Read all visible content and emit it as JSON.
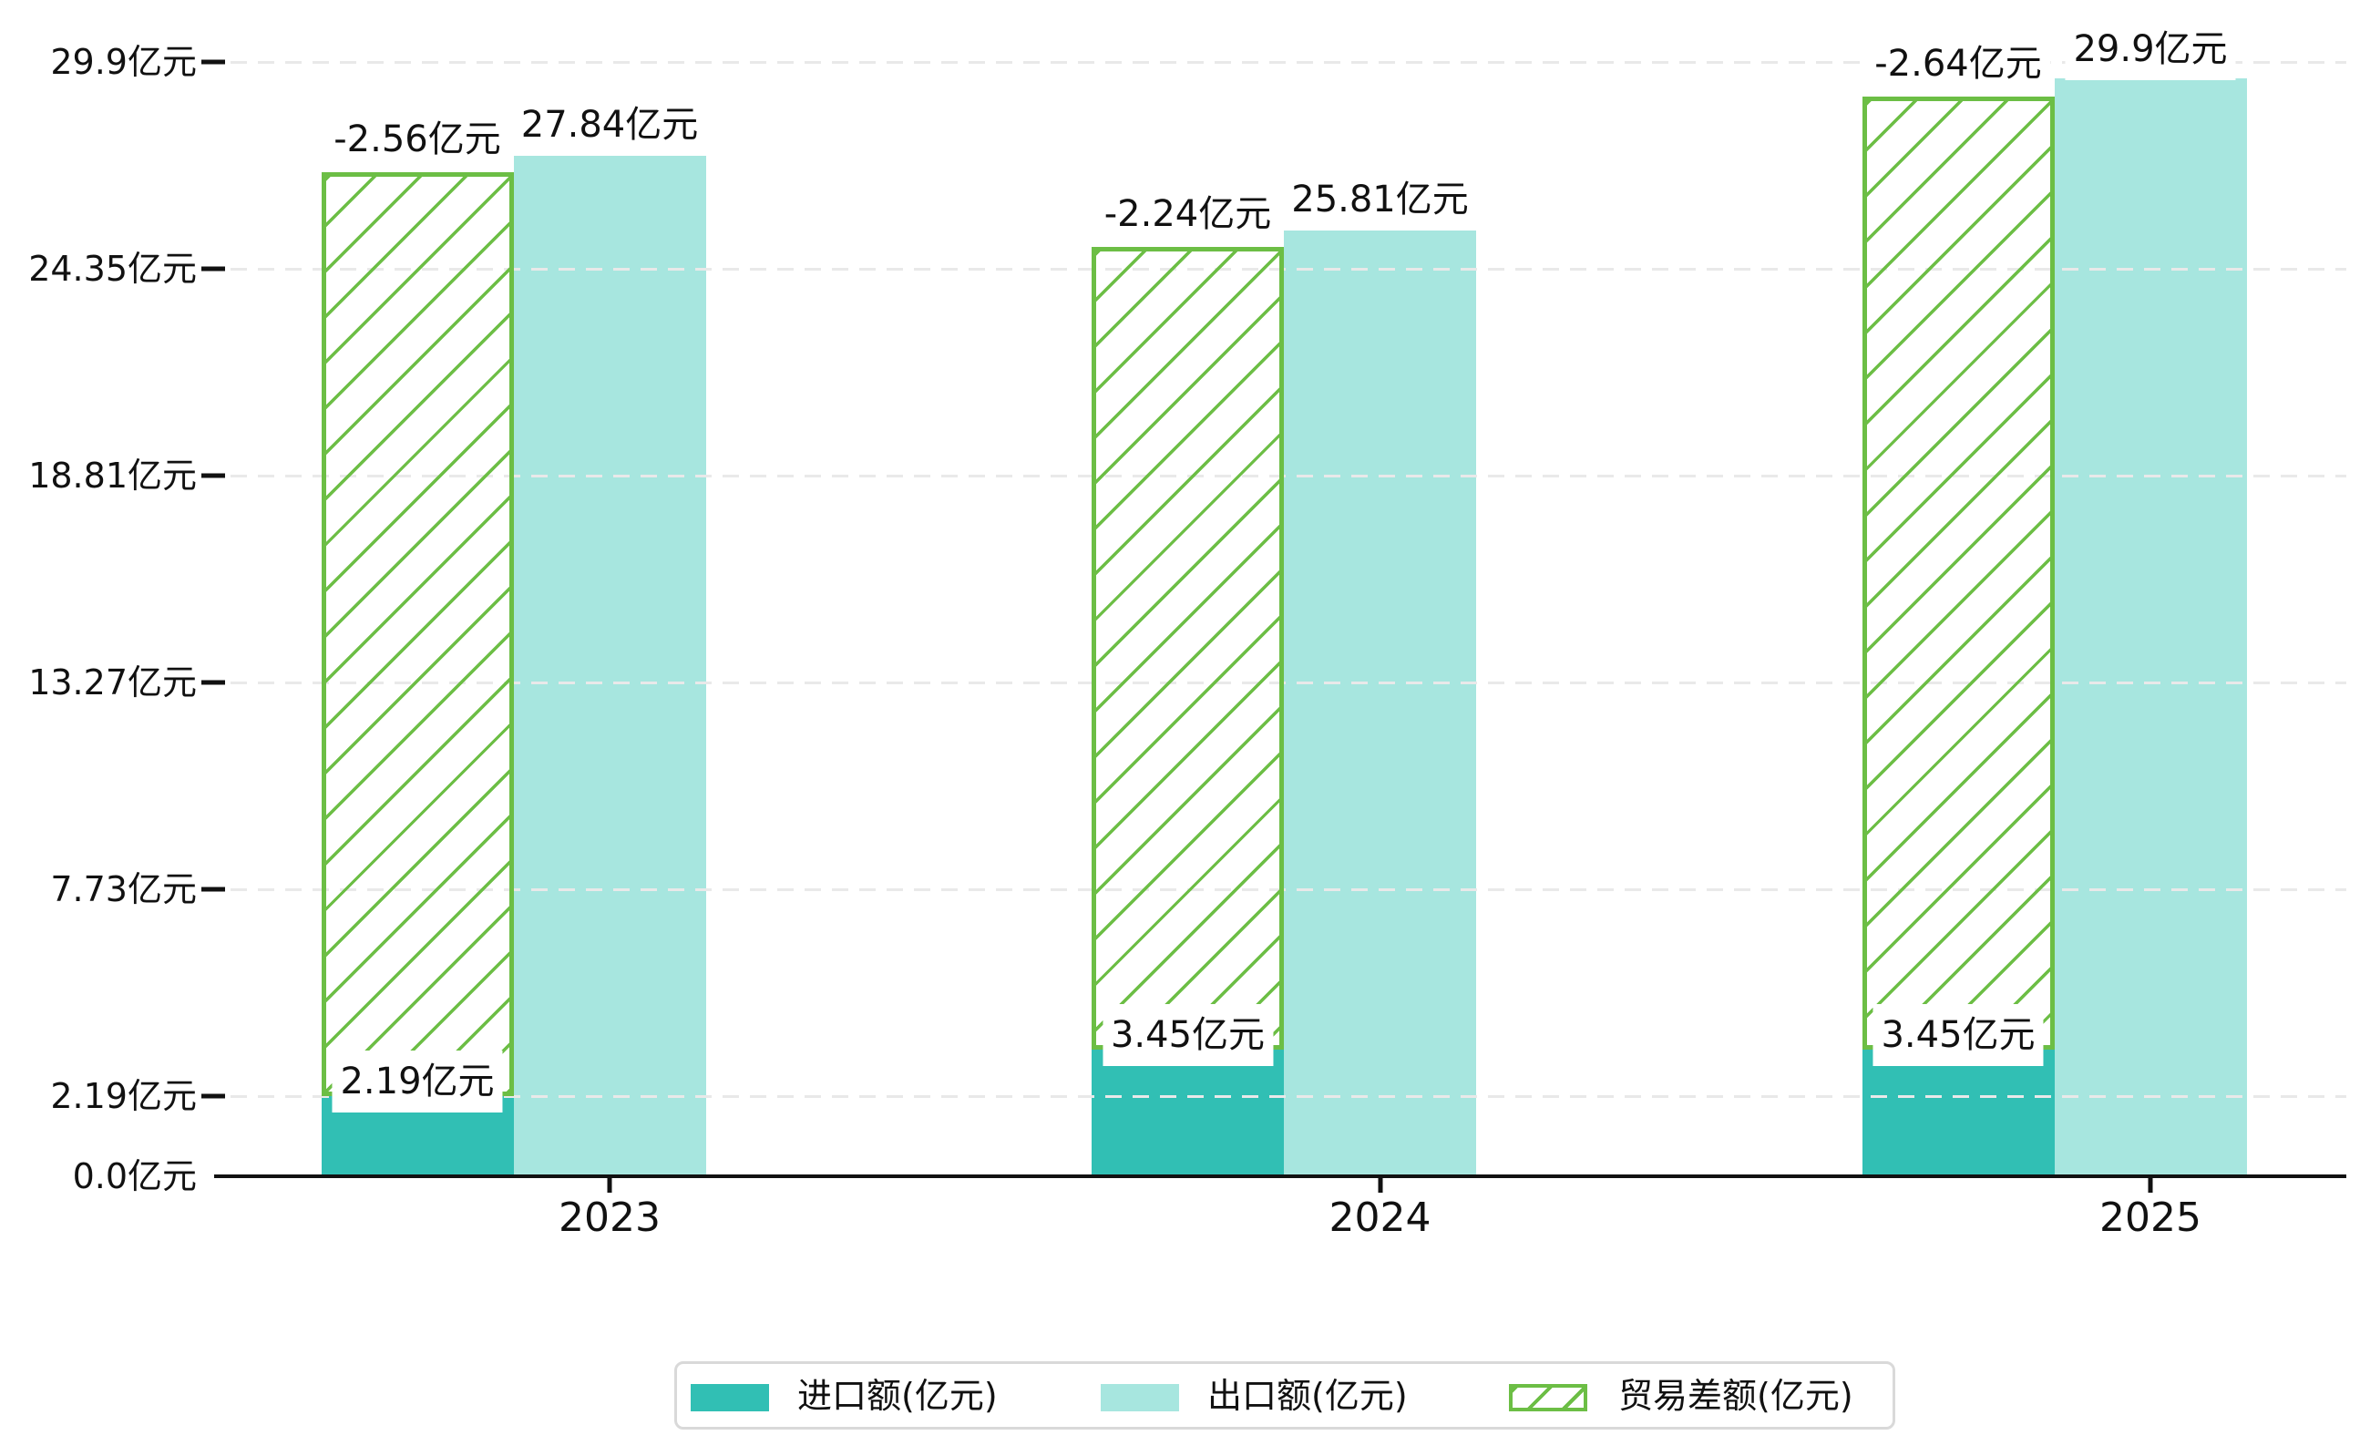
{
  "chart_data": {
    "type": "bar",
    "title": "",
    "categories": [
      "2023",
      "2024",
      "2025"
    ],
    "unit": "亿元",
    "series": [
      {
        "name": "进口额(亿元)",
        "values": [
          2.19,
          3.45,
          3.45
        ],
        "data_labels": [
          "2.19亿元",
          "3.45亿元",
          "3.45亿元"
        ],
        "color": "#31bfb4",
        "style": "solid"
      },
      {
        "name": "出口额(亿元)",
        "values": [
          27.84,
          25.81,
          29.9
        ],
        "data_labels": [
          "27.84亿元",
          "25.81亿元",
          "29.9亿元"
        ],
        "color": "#a7e6df",
        "style": "solid"
      },
      {
        "name": "贸易差额(亿元)",
        "values": [
          -2.56,
          -2.24,
          -2.64
        ],
        "data_labels": [
          "-2.56亿元",
          "-2.24亿元",
          "-2.64亿元"
        ],
        "color": "#6cbe45",
        "style": "hatched"
      }
    ],
    "y_axis": {
      "tick_labels": [
        "0.0亿元",
        "2.19亿元",
        "7.73亿元",
        "13.27亿元",
        "18.81亿元",
        "24.35亿元",
        "29.9亿元"
      ],
      "tick_values": [
        0.0,
        2.19,
        7.73,
        13.27,
        18.81,
        24.35,
        29.9
      ],
      "ylim": [
        0,
        31.6
      ],
      "grid": "dashed"
    },
    "x_axis": {
      "tick_labels": [
        "2023",
        "2024",
        "2025"
      ]
    },
    "legend": {
      "position": "bottom",
      "labels": [
        "进口额(亿元)",
        "出口额(亿元)",
        "贸易差额(亿元)"
      ]
    },
    "colors": {
      "import": "#31bfb4",
      "export": "#a7e6df",
      "balance": "#6cbe45",
      "gridline": "#e9e9e9",
      "axis": "#111111",
      "text": "#111111",
      "legend_border": "#d9d9d9",
      "background": "#ffffff"
    }
  }
}
